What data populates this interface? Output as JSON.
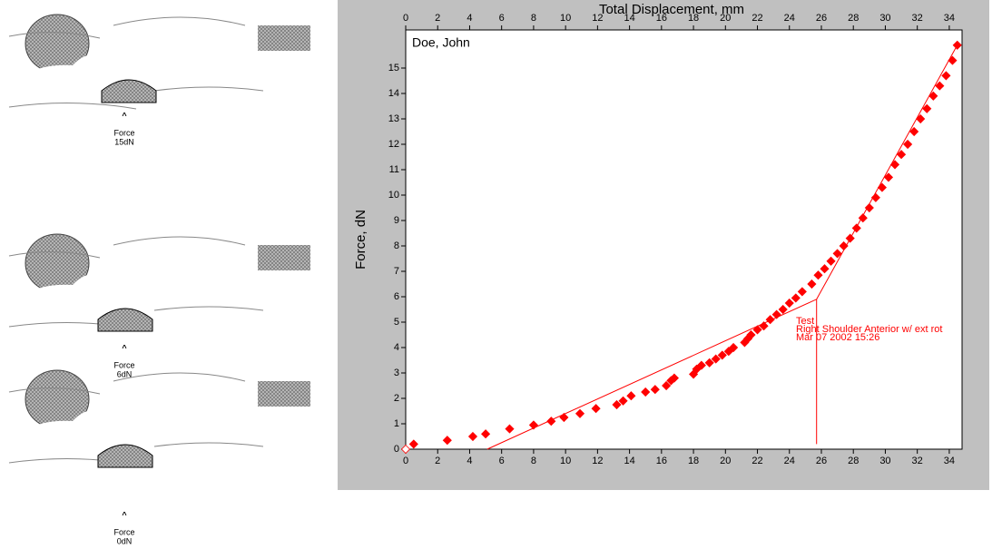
{
  "diagrams": [
    {
      "caret": "^",
      "force_label": "Force",
      "force_value": "15dN"
    },
    {
      "caret": "^",
      "force_label": "Force",
      "force_value": "6dN"
    },
    {
      "caret": "^",
      "force_label": "Force",
      "force_value": "0dN"
    }
  ],
  "chart_data": {
    "type": "scatter",
    "title": "Total Displacement, mm",
    "y_label": "Force, dN",
    "subtitle": "Doe, John",
    "annotations": [
      "Test",
      "Right Shoulder Anterior w/ ext rot",
      "Mar 07 2002 15:26"
    ],
    "xlim": [
      0,
      34.8
    ],
    "xticks": [
      0,
      2,
      4,
      6,
      8,
      10,
      12,
      14,
      16,
      18,
      20,
      22,
      24,
      26,
      28,
      30,
      32,
      34
    ],
    "ylim": [
      0,
      16.5
    ],
    "yticks": [
      0,
      1,
      2,
      3,
      4,
      5,
      6,
      7,
      8,
      9,
      10,
      11,
      12,
      13,
      14,
      15
    ],
    "series": [
      {
        "color": "#ff0000",
        "x": [
          0.5,
          2.6,
          4.2,
          5,
          6.5,
          8,
          9.1,
          9.9,
          10.9,
          11.9,
          13.2,
          13.6,
          14.1,
          15,
          15.6,
          16.3,
          16.6,
          16.8,
          18,
          18.2,
          18.5,
          19,
          19.4,
          19.8,
          20.2,
          20.5,
          21.2,
          21.4,
          21.6,
          22,
          22.4,
          22.8,
          23.2,
          23.6,
          24,
          24.4,
          24.8,
          25.4,
          25.8,
          26.2,
          26.6,
          27,
          27.4,
          27.8,
          28.2,
          28.6,
          29,
          29.4,
          29.8,
          30.2,
          30.6,
          31,
          31.4,
          31.8,
          32.2,
          32.6,
          33,
          33.4,
          33.8,
          34.2,
          34.5
        ],
        "values": [
          0.2,
          0.35,
          0.5,
          0.6,
          0.8,
          0.95,
          1.1,
          1.25,
          1.4,
          1.6,
          1.75,
          1.9,
          2.1,
          2.25,
          2.35,
          2.5,
          2.7,
          2.8,
          2.95,
          3.15,
          3.3,
          3.4,
          3.55,
          3.7,
          3.85,
          4,
          4.2,
          4.35,
          4.5,
          4.7,
          4.85,
          5.1,
          5.3,
          5.5,
          5.75,
          5.95,
          6.2,
          6.5,
          6.85,
          7.1,
          7.4,
          7.7,
          8,
          8.3,
          8.7,
          9.1,
          9.5,
          9.9,
          10.3,
          10.7,
          11.2,
          11.6,
          12,
          12.5,
          13,
          13.4,
          13.9,
          14.3,
          14.7,
          15.3,
          15.9
        ]
      },
      {
        "color": "#ffffff",
        "x": [
          0
        ],
        "values": [
          0
        ]
      }
    ],
    "lines": [
      {
        "color": "#ff0000",
        "x": [
          5.1,
          25.7,
          34.5
        ],
        "values": [
          0,
          5.9,
          15.9
        ]
      },
      {
        "color": "#ff0000",
        "x": [
          25.7,
          25.7
        ],
        "values": [
          0.2,
          5.9
        ]
      }
    ]
  }
}
